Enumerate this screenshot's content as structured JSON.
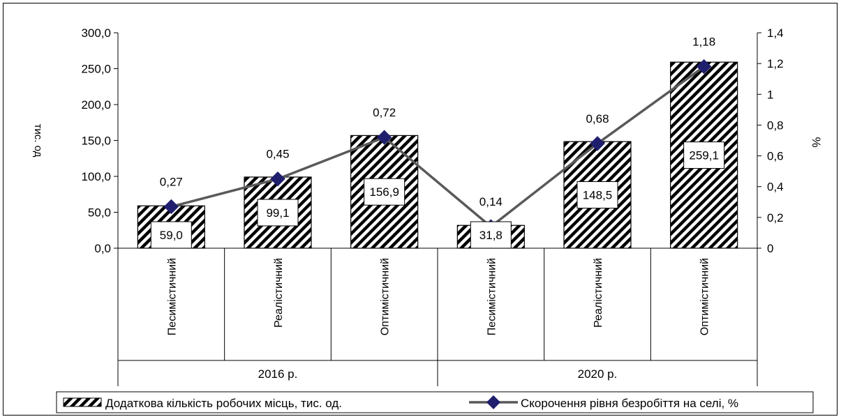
{
  "chart_data": {
    "type": "bar",
    "categories": [
      "Песимістичний",
      "Реалістичний",
      "Оптимістичний",
      "Песимістичний",
      "Реалістичний",
      "Оптимістичний"
    ],
    "groups": [
      {
        "label": "2016 р.",
        "span": 3
      },
      {
        "label": "2020 р.",
        "span": 3
      }
    ],
    "series": [
      {
        "name": "Додаткова кількість робочих місць, тис. од.",
        "type": "bar",
        "axis": "left",
        "values": [
          59.0,
          99.1,
          156.9,
          31.8,
          148.5,
          259.1
        ],
        "labels": [
          "59,0",
          "99,1",
          "156,9",
          "31,8",
          "148,5",
          "259,1"
        ]
      },
      {
        "name": "Скорочення рівня безробіття на селі, %",
        "type": "line",
        "axis": "right",
        "values": [
          0.27,
          0.45,
          0.72,
          0.14,
          0.68,
          1.18
        ],
        "labels": [
          "0,27",
          "0,45",
          "0,72",
          "0,14",
          "0,68",
          "1,18"
        ]
      }
    ],
    "ylabel": "тис. од",
    "y2label": "%",
    "ylim": [
      0,
      300
    ],
    "y2lim": [
      0,
      1.4
    ],
    "yticks": [
      "0,0",
      "50,0",
      "100,0",
      "150,0",
      "200,0",
      "250,0",
      "300,0"
    ],
    "y2ticks": [
      "0",
      "0,2",
      "0,4",
      "0,6",
      "0,8",
      "1",
      "1,2",
      "1,4"
    ],
    "grid": false,
    "legend": "bottom",
    "colors": {
      "bar_hatch": "#000000",
      "line": "#595959",
      "marker": "#1f1f6e"
    }
  }
}
